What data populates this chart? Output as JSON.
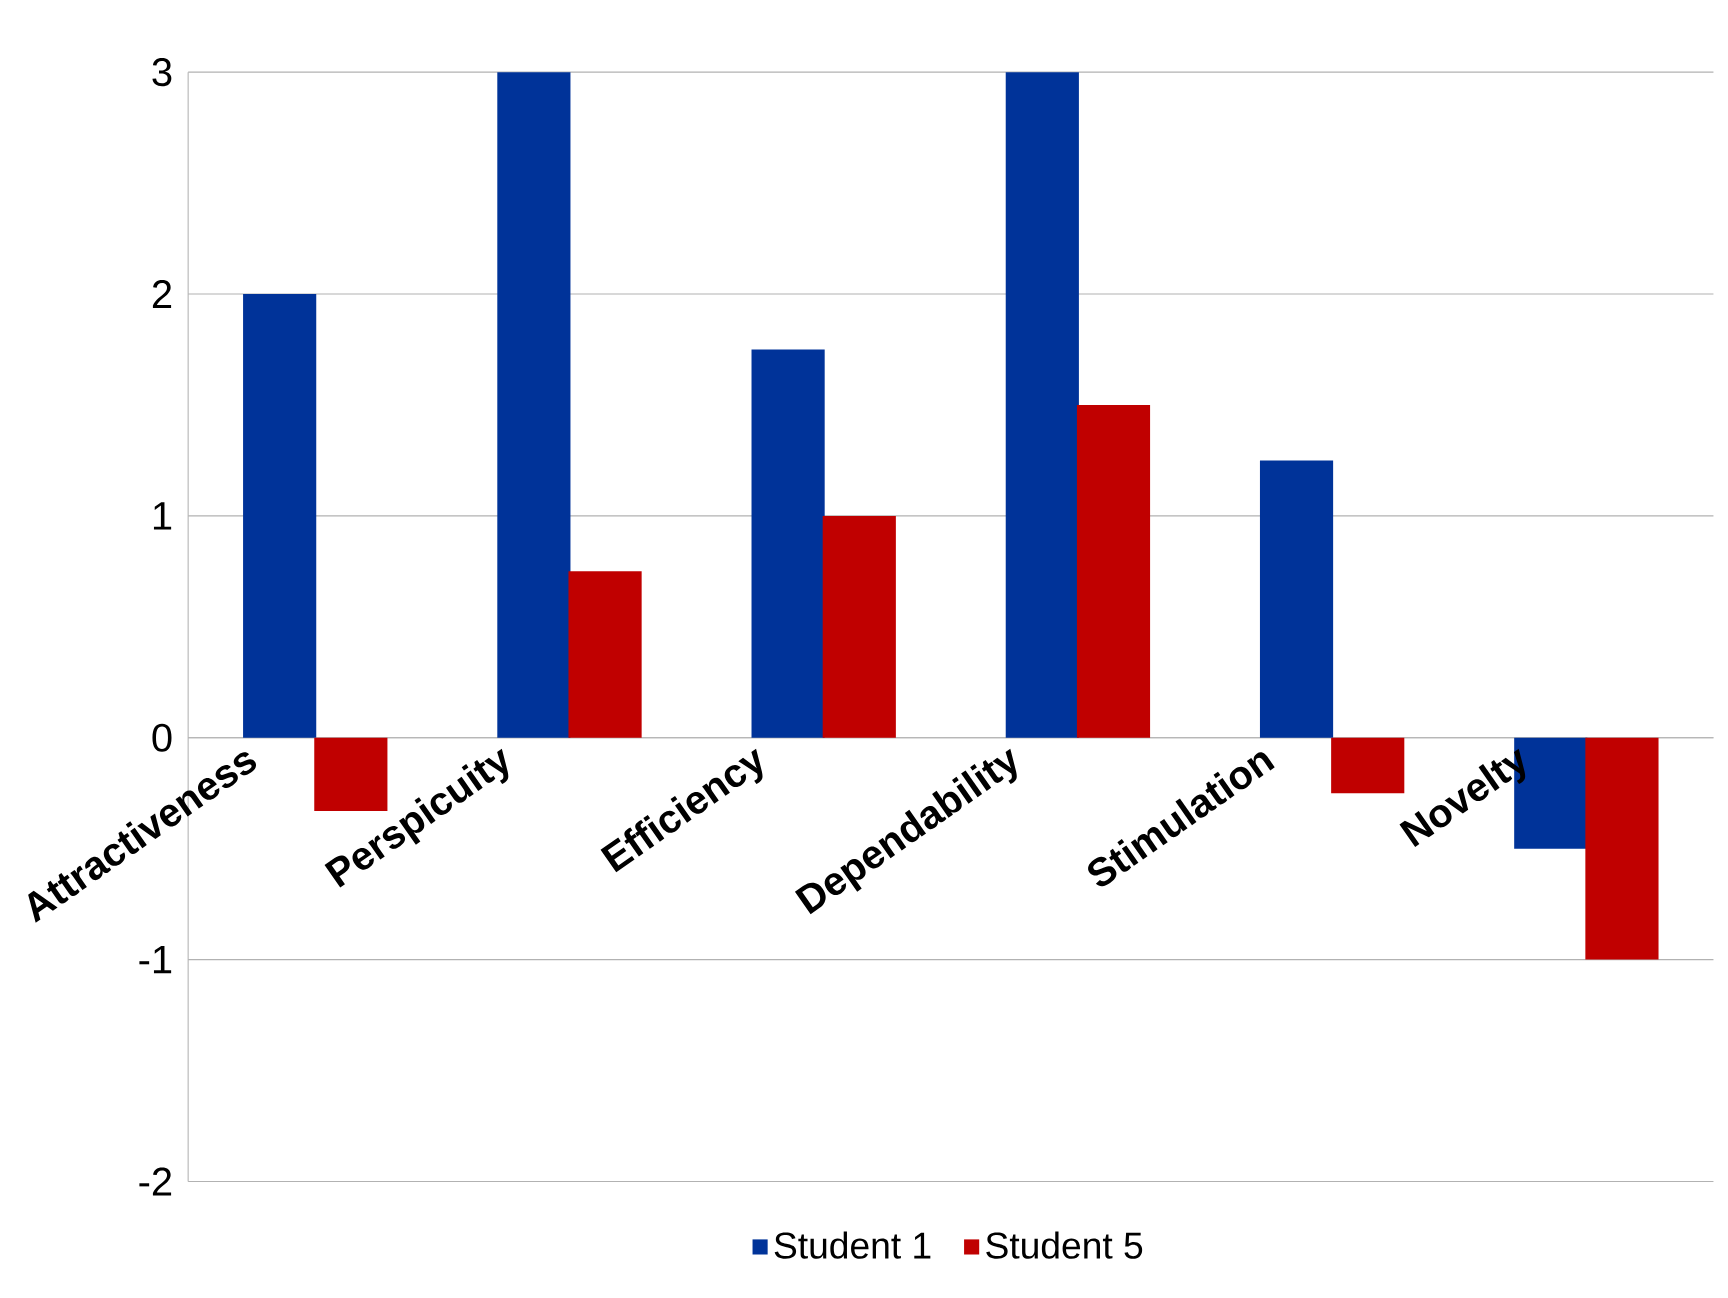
{
  "chart_data": {
    "type": "bar",
    "categories": [
      "Attractiveness",
      "Perspicuity",
      "Efficiency",
      "Dependability",
      "Stimulation",
      "Novelty"
    ],
    "series": [
      {
        "name": "Student 1",
        "color": "#003399",
        "values": [
          2,
          3,
          1.75,
          3,
          1.25,
          -0.5
        ]
      },
      {
        "name": "Student 5",
        "color": "#c00000",
        "values": [
          -0.33,
          0.75,
          1,
          1.5,
          -0.25,
          -1
        ]
      }
    ],
    "ylim": [
      -2,
      3
    ],
    "yticks": [
      -2,
      -1,
      0,
      1,
      2,
      3
    ],
    "grid": "y",
    "legend": "bottom"
  }
}
